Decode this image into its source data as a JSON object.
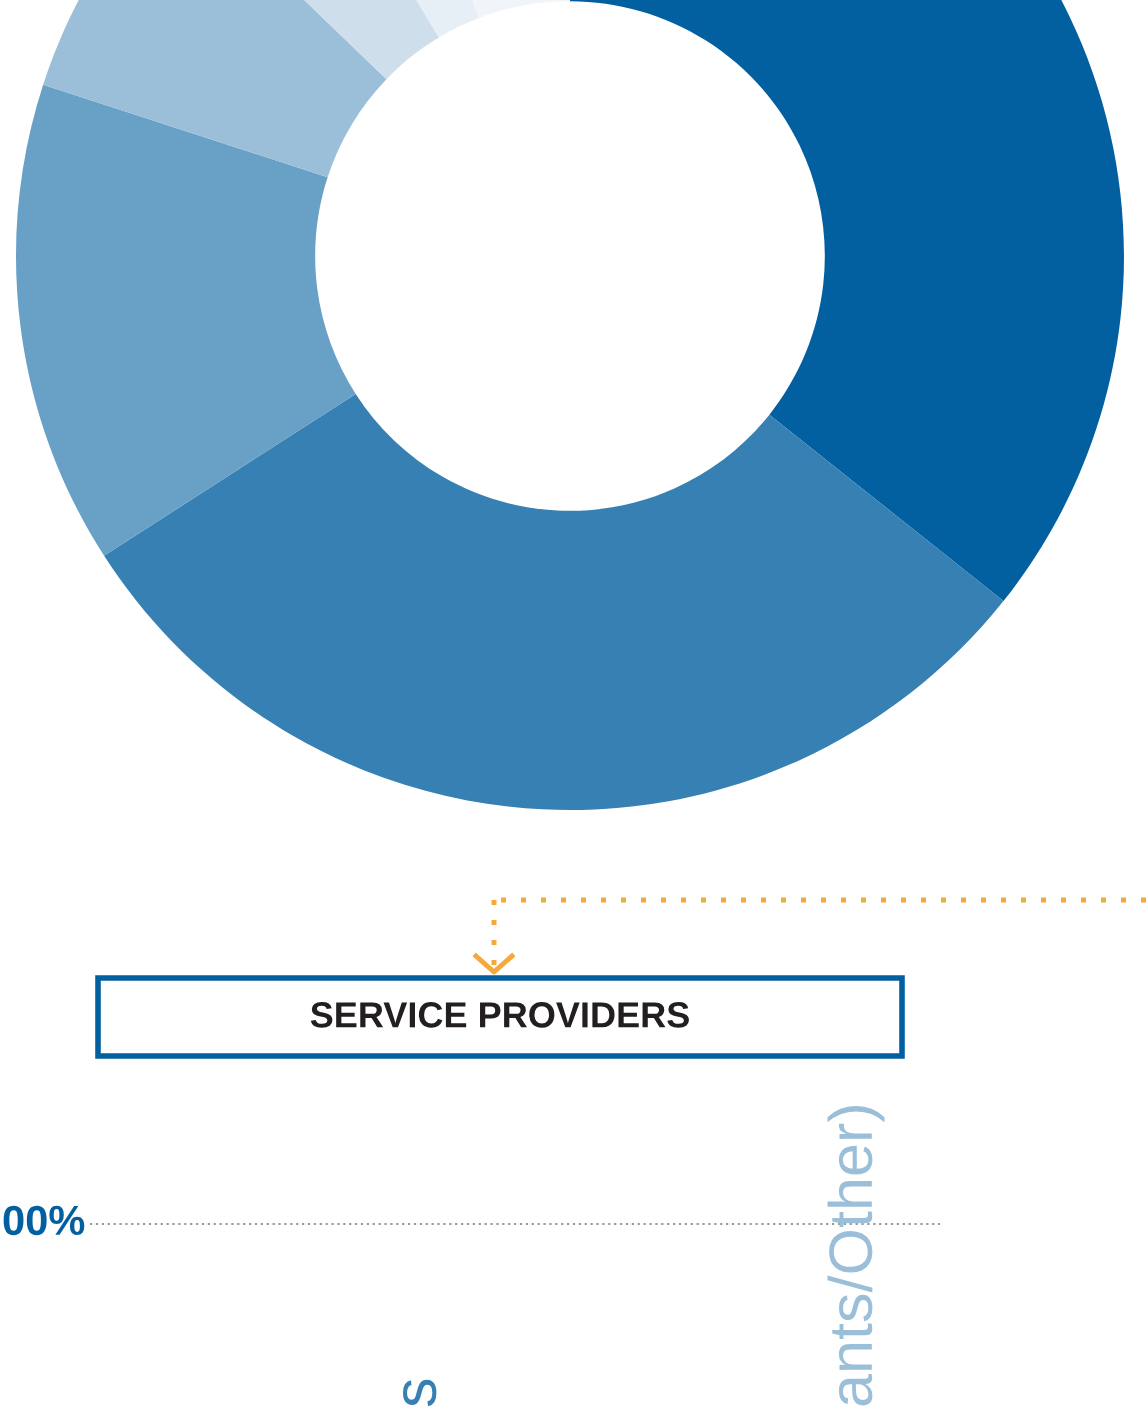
{
  "chart_data": [
    {
      "type": "donut",
      "categories": [
        null,
        null,
        null,
        null,
        null,
        null,
        null
      ],
      "values": [
        35.7,
        30.2,
        14.1,
        7.2,
        4.2,
        2.8,
        5.8
      ],
      "colors": [
        "#0360a0",
        "#3680b3",
        "#68a0c6",
        "#9bbfd8",
        "#cfdeeb",
        "#e6eef6",
        "#f1f5f9"
      ]
    },
    {
      "type": "other",
      "title": "SERVICE PROVIDERS",
      "annotations": [
        "00%",
        "s",
        "ants/Other)"
      ]
    }
  ]
}
